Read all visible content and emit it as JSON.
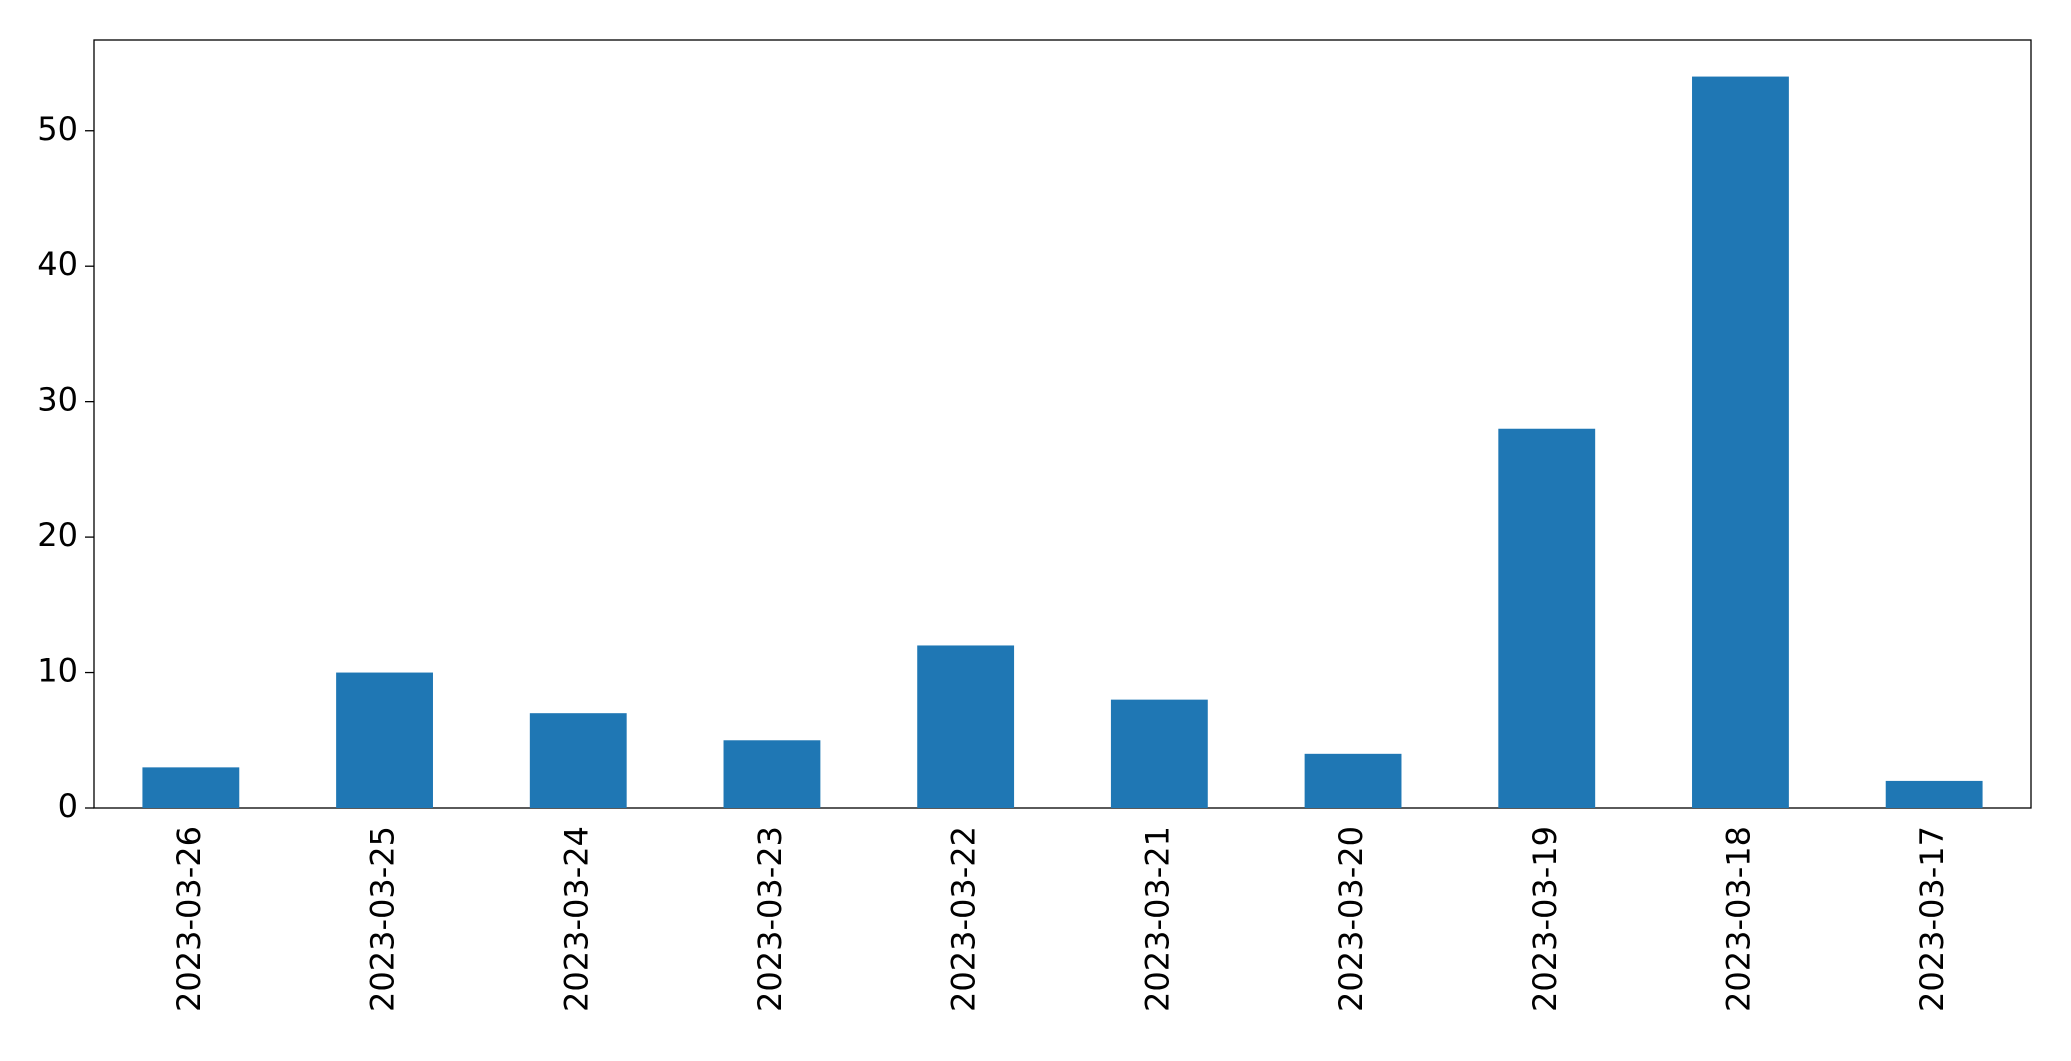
{
  "chart_data": {
    "type": "bar",
    "categories": [
      "2023-03-26",
      "2023-03-25",
      "2023-03-24",
      "2023-03-23",
      "2023-03-22",
      "2023-03-21",
      "2023-03-20",
      "2023-03-19",
      "2023-03-18",
      "2023-03-17"
    ],
    "values": [
      3,
      10,
      7,
      5,
      12,
      8,
      4,
      28,
      54,
      2
    ],
    "color": "#1f77b4",
    "ylim": [
      0,
      56.7
    ],
    "yticks": [
      0,
      10,
      20,
      30,
      40,
      50
    ],
    "grid": false
  }
}
